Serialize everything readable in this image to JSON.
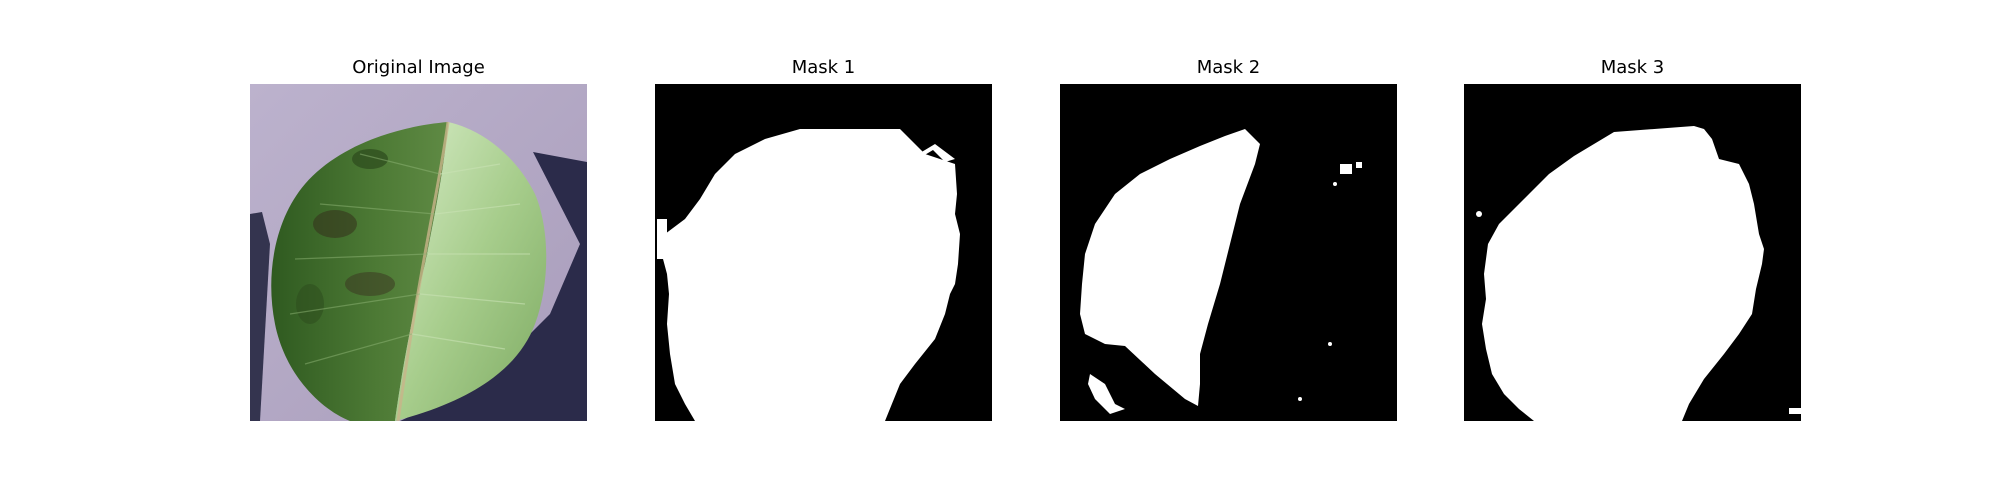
{
  "panels": [
    {
      "title": "Original Image"
    },
    {
      "title": "Mask 1"
    },
    {
      "title": "Mask 2"
    },
    {
      "title": "Mask 3"
    }
  ],
  "colors": {
    "background": "#b5a9c4",
    "shadow": "#2a2a48",
    "leaf_dark": "#3f6b2c",
    "leaf_light": "#a8cf8e",
    "mask_fg": "#ffffff",
    "mask_bg": "#000000"
  }
}
